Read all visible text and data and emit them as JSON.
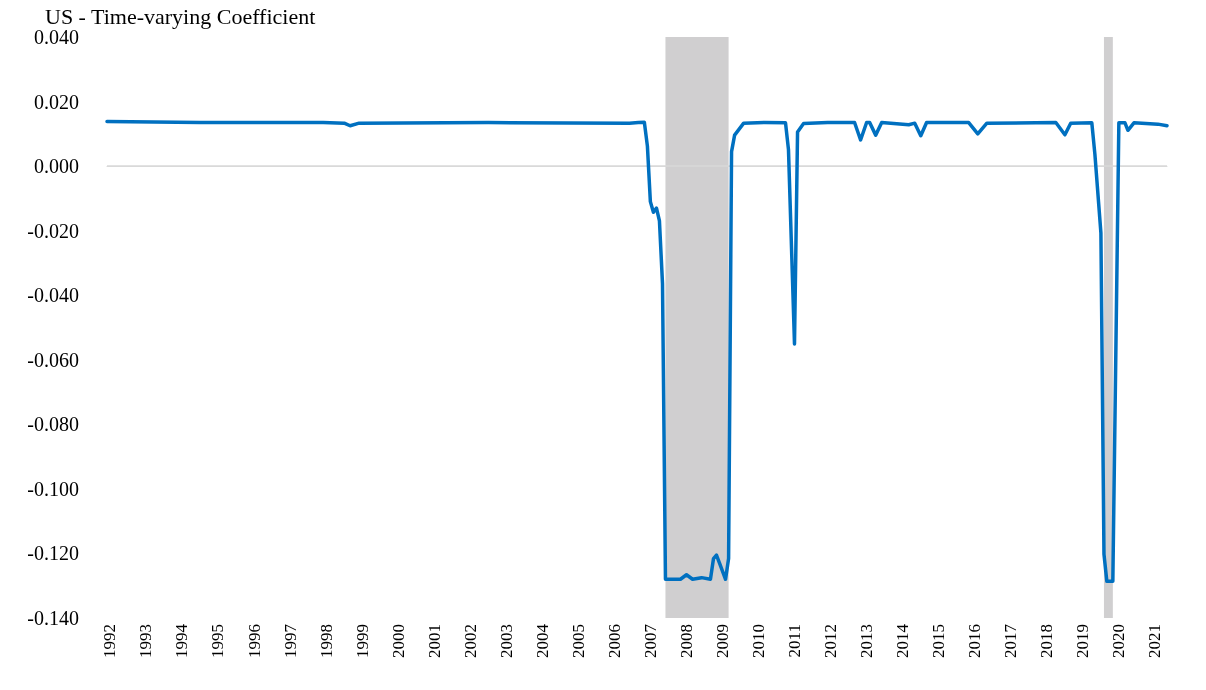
{
  "chart_data": {
    "type": "line",
    "title": "US - Time-varying Coefficient",
    "x": [
      "1992-06",
      "1995-01",
      "1998-06",
      "1999-01",
      "1999-03",
      "1999-06",
      "2003-01",
      "2006-12",
      "2007-03",
      "2007-05",
      "2007-06",
      "2007-07",
      "2007-08",
      "2007-09",
      "2007-10",
      "2007-11",
      "2007-12",
      "2008-03",
      "2008-05",
      "2008-07",
      "2008-09",
      "2008-12",
      "2009-03",
      "2009-04",
      "2009-05",
      "2009-06",
      "2009-08",
      "2009-09",
      "2009-10",
      "2009-11",
      "2010-02",
      "2010-09",
      "2011-04",
      "2011-05",
      "2011-07",
      "2011-08",
      "2011-10",
      "2012-06",
      "2013-03",
      "2013-05",
      "2013-07",
      "2013-08",
      "2013-10",
      "2013-12",
      "2014-09",
      "2014-11",
      "2015-01",
      "2015-03",
      "2016-05",
      "2016-08",
      "2016-11",
      "2018-10",
      "2019-01",
      "2019-03",
      "2019-10",
      "2019-11",
      "2020-01",
      "2020-02",
      "2020-03",
      "2020-05",
      "2020-07",
      "2020-09",
      "2020-10",
      "2020-12",
      "2021-08",
      "2021-11"
    ],
    "series": [
      {
        "color": "#0070c0",
        "values": [
          0.0138,
          0.0135,
          0.0135,
          0.0133,
          0.0125,
          0.0133,
          0.0135,
          0.0133,
          0.0135,
          0.0136,
          0.0062,
          -0.011,
          -0.0143,
          -0.013,
          -0.017,
          -0.0364,
          -0.128,
          -0.128,
          -0.128,
          -0.1266,
          -0.128,
          -0.1275,
          -0.128,
          -0.1216,
          -0.1205,
          -0.123,
          -0.128,
          -0.1216,
          0.0045,
          0.0096,
          0.0133,
          0.0135,
          0.0134,
          0.0051,
          -0.0551,
          0.0106,
          0.0132,
          0.0135,
          0.0135,
          0.0081,
          0.0135,
          0.0135,
          0.0096,
          0.0135,
          0.0128,
          0.0133,
          0.0094,
          0.0135,
          0.0135,
          0.01,
          0.0133,
          0.0135,
          0.0097,
          0.0133,
          0.0134,
          0.0037,
          -0.0207,
          -0.1202,
          -0.1286,
          -0.1286,
          0.0134,
          0.0134,
          0.0111,
          0.0134,
          0.013,
          0.0125
        ]
      }
    ],
    "xlim": [
      "1992-06",
      "2021-11"
    ],
    "xticks": [
      {
        "value": "1992-07",
        "label": "1992"
      },
      {
        "value": "1993-07",
        "label": "1993"
      },
      {
        "value": "1994-07",
        "label": "1994"
      },
      {
        "value": "1995-07",
        "label": "1995"
      },
      {
        "value": "1996-07",
        "label": "1996"
      },
      {
        "value": "1997-07",
        "label": "1997"
      },
      {
        "value": "1998-07",
        "label": "1998"
      },
      {
        "value": "1999-07",
        "label": "1999"
      },
      {
        "value": "2000-07",
        "label": "2000"
      },
      {
        "value": "2001-07",
        "label": "2001"
      },
      {
        "value": "2002-07",
        "label": "2002"
      },
      {
        "value": "2003-07",
        "label": "2003"
      },
      {
        "value": "2004-07",
        "label": "2004"
      },
      {
        "value": "2005-07",
        "label": "2005"
      },
      {
        "value": "2006-07",
        "label": "2006"
      },
      {
        "value": "2007-07",
        "label": "2007"
      },
      {
        "value": "2008-07",
        "label": "2008"
      },
      {
        "value": "2009-07",
        "label": "2009"
      },
      {
        "value": "2010-07",
        "label": "2010"
      },
      {
        "value": "2011-07",
        "label": "2011"
      },
      {
        "value": "2012-07",
        "label": "2012"
      },
      {
        "value": "2013-07",
        "label": "2013"
      },
      {
        "value": "2014-07",
        "label": "2014"
      },
      {
        "value": "2015-07",
        "label": "2015"
      },
      {
        "value": "2016-07",
        "label": "2016"
      },
      {
        "value": "2017-07",
        "label": "2017"
      },
      {
        "value": "2018-07",
        "label": "2018"
      },
      {
        "value": "2019-07",
        "label": "2019"
      },
      {
        "value": "2020-07",
        "label": "2020"
      },
      {
        "value": "2021-07",
        "label": "2021"
      }
    ],
    "ylim": [
      -0.14,
      0.04
    ],
    "yticks": [
      {
        "value": -0.14,
        "label": "-0.140"
      },
      {
        "value": -0.12,
        "label": "-0.120"
      },
      {
        "value": -0.1,
        "label": "-0.100"
      },
      {
        "value": -0.08,
        "label": "-0.080"
      },
      {
        "value": -0.06,
        "label": "-0.060"
      },
      {
        "value": -0.04,
        "label": "-0.040"
      },
      {
        "value": -0.02,
        "label": "-0.020"
      },
      {
        "value": 0,
        "label": "0.000"
      },
      {
        "value": 0.02,
        "label": "0.020"
      },
      {
        "value": 0.04,
        "label": "0.040"
      }
    ],
    "bands": [
      {
        "axis": "x",
        "from": "2007-12",
        "to": "2009-09",
        "color": "#d0cfd0"
      },
      {
        "axis": "x",
        "from": "2020-02",
        "to": "2020-05",
        "color": "#d0cfd0"
      }
    ],
    "ref_lines": [
      {
        "axis": "y",
        "value": 0,
        "color": "#d9d9d9"
      }
    ],
    "grid": false,
    "marker": "none",
    "line_style": "solid"
  }
}
